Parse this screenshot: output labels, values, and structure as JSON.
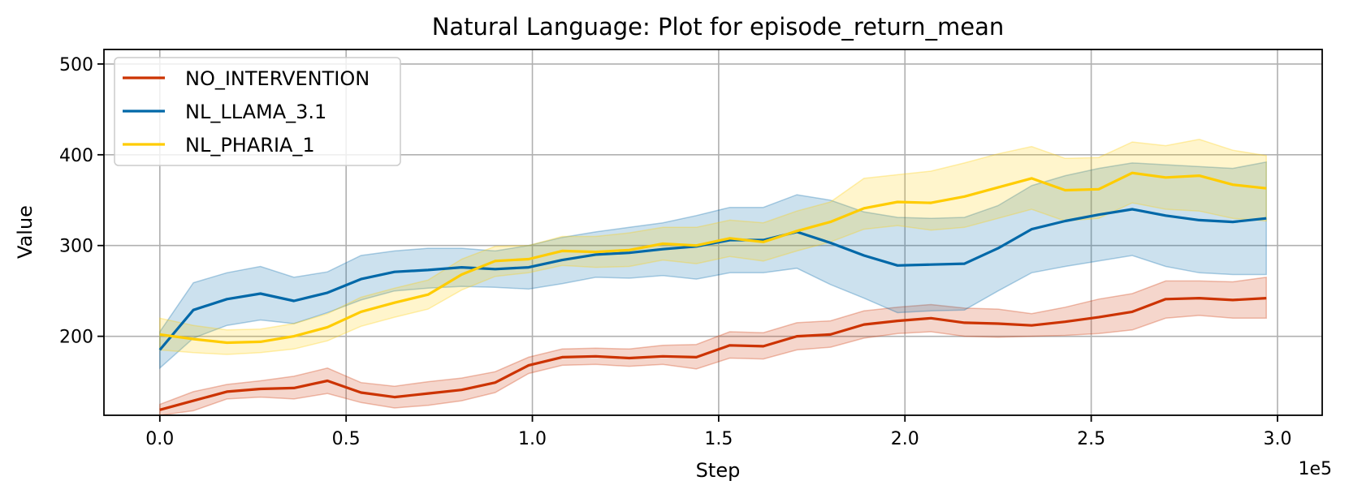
{
  "chart_data": {
    "type": "line",
    "title": "Natural Language: Plot for episode_return_mean",
    "xlabel": "Step",
    "ylabel": "Value",
    "x_offset_label": "1e5",
    "xlim": [
      -15000,
      312000
    ],
    "ylim": [
      113,
      516
    ],
    "x_ticks": [
      0,
      50000,
      100000,
      150000,
      200000,
      250000,
      300000
    ],
    "x_tick_labels": [
      "0.0",
      "0.5",
      "1.0",
      "1.5",
      "2.0",
      "2.5",
      "3.0"
    ],
    "y_ticks": [
      200,
      300,
      400,
      500
    ],
    "y_tick_labels": [
      "200",
      "300",
      "400",
      "500"
    ],
    "grid": true,
    "legend_position": "top-left",
    "x": [
      0,
      9000,
      18000,
      27000,
      36000,
      45000,
      54000,
      63000,
      72000,
      81000,
      90000,
      99000,
      108000,
      117000,
      126000,
      135000,
      144000,
      153000,
      162000,
      171000,
      180000,
      189000,
      198000,
      207000,
      216000,
      225000,
      234000,
      243000,
      252000,
      261000,
      270000,
      279000,
      288000,
      297000
    ],
    "series": [
      {
        "name": "NO_INTERVENTION",
        "color": "#cc3300",
        "values": [
          119,
          129,
          139,
          142,
          143,
          151,
          138,
          133,
          137,
          141,
          149,
          168,
          177,
          178,
          176,
          178,
          177,
          190,
          189,
          200,
          202,
          213,
          217,
          220,
          215,
          214,
          212,
          216,
          221,
          227,
          241,
          242,
          240,
          242
        ],
        "lower": [
          113,
          118,
          131,
          133,
          131,
          137,
          127,
          121,
          124,
          129,
          138,
          159,
          168,
          169,
          167,
          169,
          164,
          176,
          175,
          185,
          188,
          198,
          203,
          205,
          200,
          199,
          200,
          201,
          203,
          207,
          220,
          223,
          220,
          220
        ],
        "upper": [
          125,
          139,
          147,
          151,
          156,
          165,
          149,
          145,
          150,
          154,
          161,
          177,
          186,
          187,
          186,
          190,
          191,
          205,
          204,
          215,
          217,
          228,
          232,
          235,
          231,
          230,
          225,
          232,
          241,
          247,
          261,
          261,
          260,
          265
        ]
      },
      {
        "name": "NL_LLAMA_3.1",
        "color": "#0068a8",
        "values": [
          185,
          229,
          241,
          247,
          239,
          248,
          263,
          271,
          273,
          276,
          274,
          276,
          284,
          290,
          292,
          296,
          299,
          306,
          306,
          315,
          303,
          289,
          278,
          279,
          280,
          297,
          318,
          327,
          334,
          340,
          333,
          328,
          326,
          330
        ],
        "lower": [
          165,
          198,
          212,
          218,
          214,
          226,
          240,
          250,
          253,
          255,
          254,
          252,
          258,
          265,
          264,
          267,
          263,
          270,
          270,
          275,
          257,
          242,
          226,
          228,
          229,
          250,
          270,
          277,
          283,
          289,
          277,
          270,
          268,
          268
        ],
        "upper": [
          205,
          259,
          270,
          277,
          265,
          271,
          289,
          294,
          297,
          297,
          294,
          300,
          309,
          315,
          320,
          325,
          333,
          342,
          342,
          356,
          350,
          337,
          331,
          330,
          331,
          344,
          366,
          377,
          385,
          391,
          389,
          387,
          385,
          392
        ]
      },
      {
        "name": "NL_PHARIA_1",
        "color": "#ffcc00",
        "values": [
          202,
          197,
          193,
          194,
          200,
          210,
          227,
          237,
          246,
          268,
          283,
          285,
          294,
          293,
          295,
          302,
          300,
          308,
          304,
          316,
          326,
          341,
          348,
          347,
          354,
          364,
          374,
          361,
          362,
          380,
          375,
          377,
          367,
          363
        ],
        "lower": [
          185,
          182,
          180,
          182,
          186,
          195,
          211,
          221,
          230,
          251,
          266,
          270,
          278,
          276,
          277,
          284,
          280,
          288,
          283,
          294,
          304,
          318,
          322,
          317,
          320,
          330,
          340,
          327,
          330,
          347,
          340,
          338,
          330,
          327
        ],
        "upper": [
          220,
          212,
          207,
          208,
          214,
          225,
          243,
          253,
          262,
          285,
          299,
          300,
          310,
          310,
          314,
          320,
          320,
          328,
          325,
          338,
          348,
          374,
          378,
          382,
          391,
          401,
          409,
          396,
          397,
          414,
          410,
          417,
          405,
          399
        ]
      }
    ]
  }
}
